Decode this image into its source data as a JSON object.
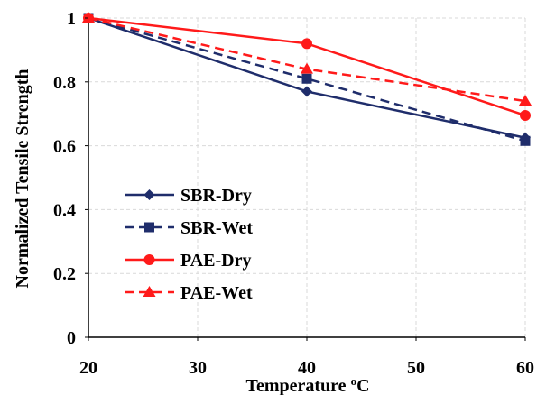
{
  "chart_data": {
    "type": "line",
    "xlabel": "Temperature",
    "xlabel_unit_sup": "o",
    "xlabel_unit": "C",
    "ylabel": "Normalized Tensile Strength",
    "xlim": [
      20,
      60
    ],
    "ylim": [
      0,
      1
    ],
    "x_ticks": [
      20,
      30,
      40,
      50,
      60
    ],
    "y_ticks": [
      0,
      0.2,
      0.4,
      0.6,
      0.8,
      1
    ],
    "y_tick_labels": [
      "0",
      "0.2",
      "0.4",
      "0.6",
      "0.8",
      "1"
    ],
    "grid": "dashed",
    "legend_position": "bottom-left",
    "x": [
      20,
      40,
      60
    ],
    "series": [
      {
        "name": "SBR-Dry",
        "values": [
          1.0,
          0.77,
          0.625
        ],
        "color": "#1f2d6b",
        "dash": "solid",
        "marker": "diamond"
      },
      {
        "name": "SBR-Wet",
        "values": [
          1.0,
          0.81,
          0.615
        ],
        "color": "#1f2d6b",
        "dash": "dashed",
        "marker": "square"
      },
      {
        "name": "PAE-Dry",
        "values": [
          1.0,
          0.92,
          0.695
        ],
        "color": "#ff1a1a",
        "dash": "solid",
        "marker": "circle"
      },
      {
        "name": "PAE-Wet",
        "values": [
          1.0,
          0.84,
          0.74
        ],
        "color": "#ff1a1a",
        "dash": "dashed",
        "marker": "triangle"
      }
    ]
  }
}
